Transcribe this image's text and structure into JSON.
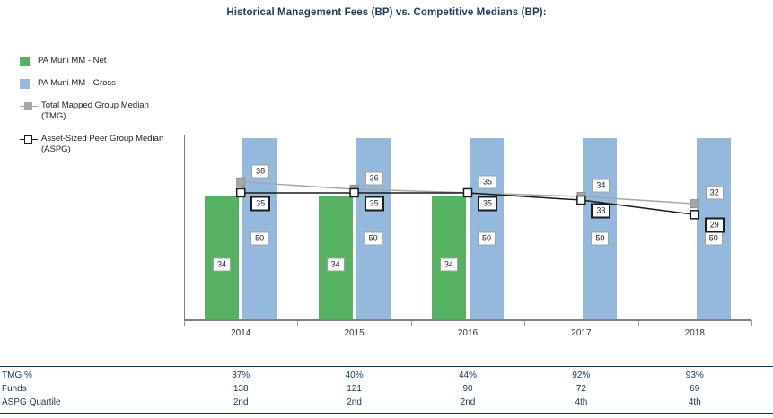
{
  "title": "Historical Management Fees (BP) vs. Competitive Medians (BP):",
  "legend": [
    {
      "id": "net",
      "label": "PA Muni MM - Net",
      "swatch": "square",
      "color": "#56b262"
    },
    {
      "id": "gross",
      "label": "PA Muni MM - Gross",
      "swatch": "square",
      "color": "#94b9dd"
    },
    {
      "id": "tmg",
      "label": "Total Mapped Group Median (TMG)",
      "swatch": "line-filled-square",
      "color": "#a6a6a6"
    },
    {
      "id": "aspg",
      "label": "Asset-Sized Peer Group Median (ASPG)",
      "swatch": "line-open-square",
      "color": "#1a1a1a"
    }
  ],
  "chart_data": {
    "type": "bar+line",
    "categories": [
      "2014",
      "2015",
      "2016",
      "2017",
      "2018"
    ],
    "series": [
      {
        "name": "PA Muni MM - Net",
        "type": "bar",
        "color": "#56b262",
        "values": [
          34,
          34,
          34,
          null,
          null
        ]
      },
      {
        "name": "PA Muni MM - Gross",
        "type": "bar",
        "color": "#94b9dd",
        "values": [
          50,
          50,
          50,
          50,
          50
        ]
      },
      {
        "name": "Total Mapped Group Median (TMG)",
        "type": "line",
        "color": "#a6a6a6",
        "values": [
          38,
          36,
          35,
          34,
          32
        ]
      },
      {
        "name": "Asset-Sized Peer Group Median (ASPG)",
        "type": "line",
        "color": "#1a1a1a",
        "values": [
          35,
          35,
          35,
          33,
          29
        ]
      }
    ],
    "xlabel": "",
    "ylabel": "",
    "ylim": [
      0,
      51
    ],
    "grid": false,
    "legend_position": "top-left",
    "value_labels": true
  },
  "table": {
    "rows": [
      {
        "label": "TMG %",
        "values": [
          "37%",
          "40%",
          "44%",
          "92%",
          "93%"
        ]
      },
      {
        "label": "Funds",
        "values": [
          "138",
          "121",
          "90",
          "72",
          "69"
        ]
      },
      {
        "label": "ASPG Quartile",
        "values": [
          "2nd",
          "2nd",
          "2nd",
          "4th",
          "4th"
        ]
      }
    ]
  },
  "colors": {
    "net_green": "#56b262",
    "gross_blue": "#94b9dd",
    "tmg_gray": "#a6a6a6",
    "line_black": "#1a1a1a",
    "navy_text": "#17365d",
    "axis_gray": "#808080"
  }
}
